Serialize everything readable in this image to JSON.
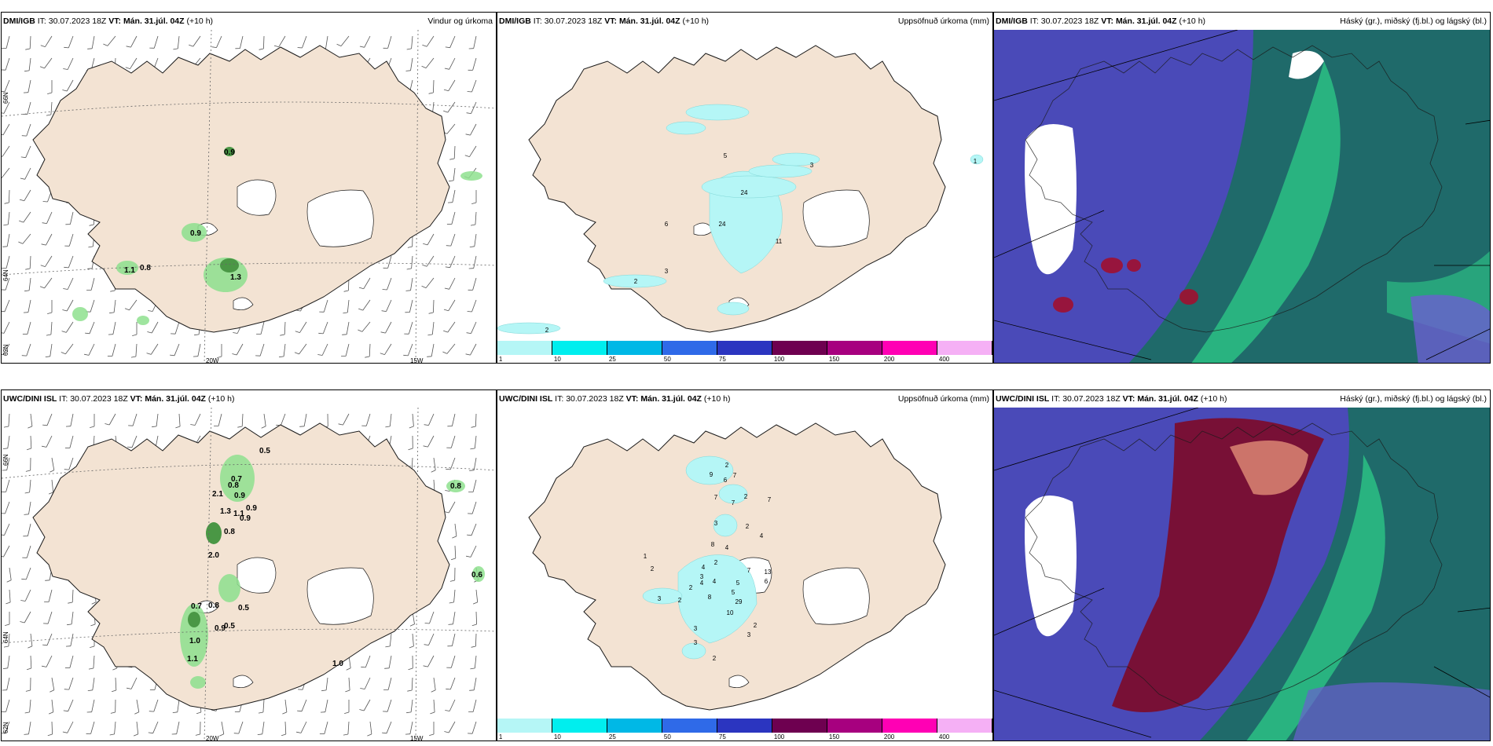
{
  "panels": {
    "tl": {
      "model": "DMI/IGB",
      "it_label": "IT:",
      "it": "30.07.2023 18Z",
      "vt_label": "VT:",
      "vt": "Mán. 31.júl. 04Z",
      "lead": "(+10 h)",
      "product": "Vindur og úrkoma"
    },
    "tm": {
      "model": "DMI/IGB",
      "it_label": "IT:",
      "it": "30.07.2023 18Z",
      "vt_label": "VT:",
      "vt": "Mán. 31.júl. 04Z",
      "lead": "(+10 h)",
      "product": "Uppsöfnuð úrkoma (mm)"
    },
    "tr": {
      "model": "DMI/IGB",
      "it_label": "IT:",
      "it": "30.07.2023 18Z",
      "vt_label": "VT:",
      "vt": "Mán. 31.júl. 04Z",
      "lead": "(+10 h)",
      "product": "Háský (gr.), miðský (fj.bl.) og lágský (bl.)"
    },
    "bl": {
      "model": "UWC/DINI ISL",
      "it_label": "IT:",
      "it": "30.07.2023 18Z",
      "vt_label": "VT:",
      "vt": "Mán. 31.júl. 04Z",
      "lead": "(+10 h)",
      "product": ""
    },
    "bm": {
      "model": "UWC/DINI ISL",
      "it_label": "IT:",
      "it": "30.07.2023 18Z",
      "vt_label": "VT:",
      "vt": "Mán. 31.júl. 04Z",
      "lead": "(+10 h)",
      "product": "Uppsöfnuð úrkoma (mm)"
    },
    "br": {
      "model": "UWC/DINI ISL",
      "it_label": "IT:",
      "it": "30.07.2023 18Z",
      "vt_label": "VT:",
      "vt": "Mán. 31.júl. 04Z",
      "lead": "(+10 h)",
      "product": "Háský (gr.), miðský (fj.bl.) og lágský (bl.)"
    }
  },
  "axes": {
    "lat66": "66N",
    "lat64": "64N",
    "lat62": "62N",
    "lon20": "20W",
    "lon15": "15W"
  },
  "colorbar": {
    "ticks": [
      "1",
      "10",
      "25",
      "50",
      "75",
      "100",
      "150",
      "200",
      "400"
    ],
    "colors": [
      "#b5f6f6",
      "#00eeee",
      "#00b8e6",
      "#2f6ae8",
      "#2b35c0",
      "#6e0050",
      "#a7007f",
      "#ff00b4",
      "#f5b0f5"
    ]
  },
  "precip_labels": {
    "tl": [
      "0.9",
      "0.9",
      "0.8",
      "1.1",
      "1.3"
    ],
    "bl": [
      "0.5",
      "0.7",
      "0.8",
      "2.1",
      "0.9",
      "1.3",
      "1.1",
      "0.9",
      "0.9",
      "0.8",
      "2.0",
      "0.7",
      "0.8",
      "0.5",
      "0.9",
      "0.5",
      "1.0",
      "1.1",
      "1.0",
      "0.8",
      "0.6"
    ]
  },
  "accum_labels": {
    "tm": [
      "5",
      "3",
      "1",
      "24",
      "24",
      "6",
      "11",
      "3",
      "2",
      "2"
    ],
    "bm": [
      "9",
      "2",
      "6",
      "7",
      "7",
      "7",
      "7",
      "2",
      "2",
      "3",
      "4",
      "8",
      "4",
      "1",
      "2",
      "4",
      "2",
      "7",
      "5",
      "13",
      "6",
      "3",
      "2",
      "4",
      "5",
      "8",
      "4",
      "3",
      "2",
      "29",
      "10",
      "2",
      "3",
      "3",
      "2",
      "3"
    ]
  },
  "colors": {
    "land": "#f3e3d3",
    "coast": "#1a1a1a",
    "precip_green": "#8ee08e",
    "accum_cyan": "#b5f6f6",
    "cloud_high": "#1f6a6a",
    "cloud_mid": "#2ecc88",
    "cloud_low": "#4040b8",
    "cloud_red": "#a01030"
  }
}
